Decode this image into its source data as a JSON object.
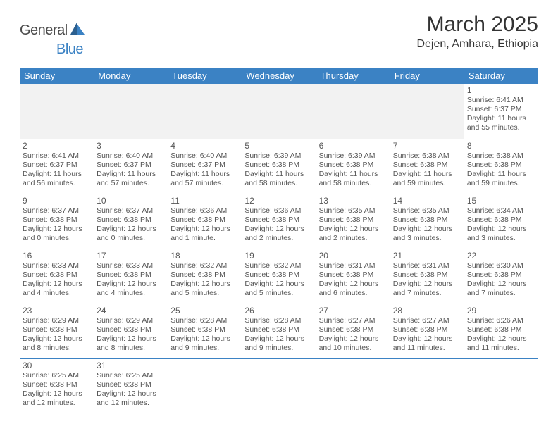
{
  "logo": {
    "general": "General",
    "blue": "Blue"
  },
  "title": "March 2025",
  "location": "Dejen, Amhara, Ethiopia",
  "weekdays": [
    "Sunday",
    "Monday",
    "Tuesday",
    "Wednesday",
    "Thursday",
    "Friday",
    "Saturday"
  ],
  "header_bg": "#3b82c4",
  "rows": [
    {
      "blank": true,
      "cells": [
        null,
        null,
        null,
        null,
        null,
        null,
        {
          "n": "1",
          "sr": "Sunrise: 6:41 AM",
          "ss": "Sunset: 6:37 PM",
          "d1": "Daylight: 11 hours",
          "d2": "and 55 minutes."
        }
      ]
    },
    {
      "cells": [
        {
          "n": "2",
          "sr": "Sunrise: 6:41 AM",
          "ss": "Sunset: 6:37 PM",
          "d1": "Daylight: 11 hours",
          "d2": "and 56 minutes."
        },
        {
          "n": "3",
          "sr": "Sunrise: 6:40 AM",
          "ss": "Sunset: 6:37 PM",
          "d1": "Daylight: 11 hours",
          "d2": "and 57 minutes."
        },
        {
          "n": "4",
          "sr": "Sunrise: 6:40 AM",
          "ss": "Sunset: 6:37 PM",
          "d1": "Daylight: 11 hours",
          "d2": "and 57 minutes."
        },
        {
          "n": "5",
          "sr": "Sunrise: 6:39 AM",
          "ss": "Sunset: 6:38 PM",
          "d1": "Daylight: 11 hours",
          "d2": "and 58 minutes."
        },
        {
          "n": "6",
          "sr": "Sunrise: 6:39 AM",
          "ss": "Sunset: 6:38 PM",
          "d1": "Daylight: 11 hours",
          "d2": "and 58 minutes."
        },
        {
          "n": "7",
          "sr": "Sunrise: 6:38 AM",
          "ss": "Sunset: 6:38 PM",
          "d1": "Daylight: 11 hours",
          "d2": "and 59 minutes."
        },
        {
          "n": "8",
          "sr": "Sunrise: 6:38 AM",
          "ss": "Sunset: 6:38 PM",
          "d1": "Daylight: 11 hours",
          "d2": "and 59 minutes."
        }
      ]
    },
    {
      "cells": [
        {
          "n": "9",
          "sr": "Sunrise: 6:37 AM",
          "ss": "Sunset: 6:38 PM",
          "d1": "Daylight: 12 hours",
          "d2": "and 0 minutes."
        },
        {
          "n": "10",
          "sr": "Sunrise: 6:37 AM",
          "ss": "Sunset: 6:38 PM",
          "d1": "Daylight: 12 hours",
          "d2": "and 0 minutes."
        },
        {
          "n": "11",
          "sr": "Sunrise: 6:36 AM",
          "ss": "Sunset: 6:38 PM",
          "d1": "Daylight: 12 hours",
          "d2": "and 1 minute."
        },
        {
          "n": "12",
          "sr": "Sunrise: 6:36 AM",
          "ss": "Sunset: 6:38 PM",
          "d1": "Daylight: 12 hours",
          "d2": "and 2 minutes."
        },
        {
          "n": "13",
          "sr": "Sunrise: 6:35 AM",
          "ss": "Sunset: 6:38 PM",
          "d1": "Daylight: 12 hours",
          "d2": "and 2 minutes."
        },
        {
          "n": "14",
          "sr": "Sunrise: 6:35 AM",
          "ss": "Sunset: 6:38 PM",
          "d1": "Daylight: 12 hours",
          "d2": "and 3 minutes."
        },
        {
          "n": "15",
          "sr": "Sunrise: 6:34 AM",
          "ss": "Sunset: 6:38 PM",
          "d1": "Daylight: 12 hours",
          "d2": "and 3 minutes."
        }
      ]
    },
    {
      "cells": [
        {
          "n": "16",
          "sr": "Sunrise: 6:33 AM",
          "ss": "Sunset: 6:38 PM",
          "d1": "Daylight: 12 hours",
          "d2": "and 4 minutes."
        },
        {
          "n": "17",
          "sr": "Sunrise: 6:33 AM",
          "ss": "Sunset: 6:38 PM",
          "d1": "Daylight: 12 hours",
          "d2": "and 4 minutes."
        },
        {
          "n": "18",
          "sr": "Sunrise: 6:32 AM",
          "ss": "Sunset: 6:38 PM",
          "d1": "Daylight: 12 hours",
          "d2": "and 5 minutes."
        },
        {
          "n": "19",
          "sr": "Sunrise: 6:32 AM",
          "ss": "Sunset: 6:38 PM",
          "d1": "Daylight: 12 hours",
          "d2": "and 5 minutes."
        },
        {
          "n": "20",
          "sr": "Sunrise: 6:31 AM",
          "ss": "Sunset: 6:38 PM",
          "d1": "Daylight: 12 hours",
          "d2": "and 6 minutes."
        },
        {
          "n": "21",
          "sr": "Sunrise: 6:31 AM",
          "ss": "Sunset: 6:38 PM",
          "d1": "Daylight: 12 hours",
          "d2": "and 7 minutes."
        },
        {
          "n": "22",
          "sr": "Sunrise: 6:30 AM",
          "ss": "Sunset: 6:38 PM",
          "d1": "Daylight: 12 hours",
          "d2": "and 7 minutes."
        }
      ]
    },
    {
      "cells": [
        {
          "n": "23",
          "sr": "Sunrise: 6:29 AM",
          "ss": "Sunset: 6:38 PM",
          "d1": "Daylight: 12 hours",
          "d2": "and 8 minutes."
        },
        {
          "n": "24",
          "sr": "Sunrise: 6:29 AM",
          "ss": "Sunset: 6:38 PM",
          "d1": "Daylight: 12 hours",
          "d2": "and 8 minutes."
        },
        {
          "n": "25",
          "sr": "Sunrise: 6:28 AM",
          "ss": "Sunset: 6:38 PM",
          "d1": "Daylight: 12 hours",
          "d2": "and 9 minutes."
        },
        {
          "n": "26",
          "sr": "Sunrise: 6:28 AM",
          "ss": "Sunset: 6:38 PM",
          "d1": "Daylight: 12 hours",
          "d2": "and 9 minutes."
        },
        {
          "n": "27",
          "sr": "Sunrise: 6:27 AM",
          "ss": "Sunset: 6:38 PM",
          "d1": "Daylight: 12 hours",
          "d2": "and 10 minutes."
        },
        {
          "n": "28",
          "sr": "Sunrise: 6:27 AM",
          "ss": "Sunset: 6:38 PM",
          "d1": "Daylight: 12 hours",
          "d2": "and 11 minutes."
        },
        {
          "n": "29",
          "sr": "Sunrise: 6:26 AM",
          "ss": "Sunset: 6:38 PM",
          "d1": "Daylight: 12 hours",
          "d2": "and 11 minutes."
        }
      ]
    },
    {
      "last": true,
      "cells": [
        {
          "n": "30",
          "sr": "Sunrise: 6:25 AM",
          "ss": "Sunset: 6:38 PM",
          "d1": "Daylight: 12 hours",
          "d2": "and 12 minutes."
        },
        {
          "n": "31",
          "sr": "Sunrise: 6:25 AM",
          "ss": "Sunset: 6:38 PM",
          "d1": "Daylight: 12 hours",
          "d2": "and 12 minutes."
        },
        null,
        null,
        null,
        null,
        null
      ]
    }
  ]
}
